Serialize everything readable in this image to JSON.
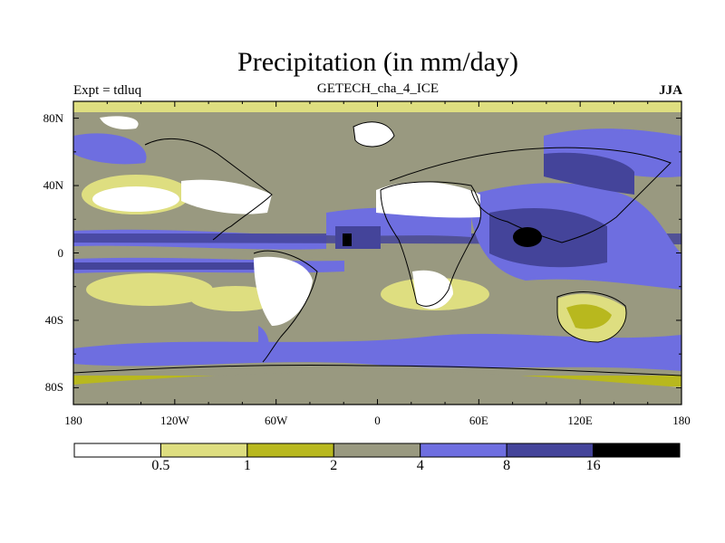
{
  "title": "Precipitation (in mm/day)",
  "subtitle": "GETECH_cha_4_ICE",
  "left_label": "Expt = tdluq",
  "right_label": "JJA",
  "lat_labels": [
    {
      "text": "80N",
      "lat": 80
    },
    {
      "text": "40N",
      "lat": 40
    },
    {
      "text": "0",
      "lat": 0
    },
    {
      "text": "40S",
      "lat": -40
    },
    {
      "text": "80S",
      "lat": -80
    }
  ],
  "lon_labels": [
    {
      "text": "180",
      "lon": -180
    },
    {
      "text": "120W",
      "lon": -120
    },
    {
      "text": "60W",
      "lon": -60
    },
    {
      "text": "0",
      "lon": 0
    },
    {
      "text": "60E",
      "lon": 60
    },
    {
      "text": "120E",
      "lon": 120
    },
    {
      "text": "180",
      "lon": 180
    }
  ],
  "colorbar": {
    "colors": [
      "#ffffff",
      "#dede80",
      "#b8b81e",
      "#999980",
      "#6e6ee0",
      "#44449a",
      "#000000"
    ],
    "boundaries": [
      "0.5",
      "1",
      "2",
      "4",
      "8",
      "16"
    ]
  },
  "colors": {
    "frame": "#000000",
    "coast": "#000000"
  }
}
